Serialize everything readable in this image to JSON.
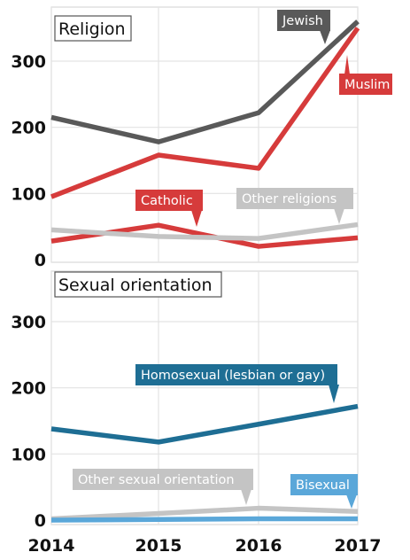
{
  "chart_data": [
    {
      "type": "line",
      "title": "Religion",
      "x": [
        "2014",
        "2015",
        "2016",
        "2017"
      ],
      "ylim": [
        0,
        380
      ],
      "yticks": [
        0,
        100,
        200,
        300
      ],
      "grid": true,
      "series": [
        {
          "name": "Jewish",
          "color": "#595959",
          "values": [
            215,
            178,
            222,
            360
          ]
        },
        {
          "name": "Muslim",
          "color": "#d63b3b",
          "values": [
            95,
            158,
            138,
            350
          ]
        },
        {
          "name": "Catholic",
          "color": "#d63b3b",
          "values": [
            28,
            52,
            20,
            33
          ]
        },
        {
          "name": "Other religions",
          "color": "#c4c4c4",
          "values": [
            45,
            35,
            32,
            53
          ]
        }
      ]
    },
    {
      "type": "line",
      "title": "Sexual orientation",
      "x": [
        "2014",
        "2015",
        "2016",
        "2017"
      ],
      "ylim": [
        0,
        360
      ],
      "yticks": [
        0,
        100,
        200,
        300
      ],
      "grid": true,
      "series": [
        {
          "name": "Homosexual (lesbian or gay)",
          "color": "#1e6e94",
          "values": [
            138,
            118,
            145,
            172
          ]
        },
        {
          "name": "Other sexual orientation",
          "color": "#c4c4c4",
          "values": [
            2,
            10,
            18,
            13
          ]
        },
        {
          "name": "Bisexual",
          "color": "#5aa7d9",
          "values": [
            0,
            1,
            2,
            2
          ]
        }
      ]
    }
  ]
}
